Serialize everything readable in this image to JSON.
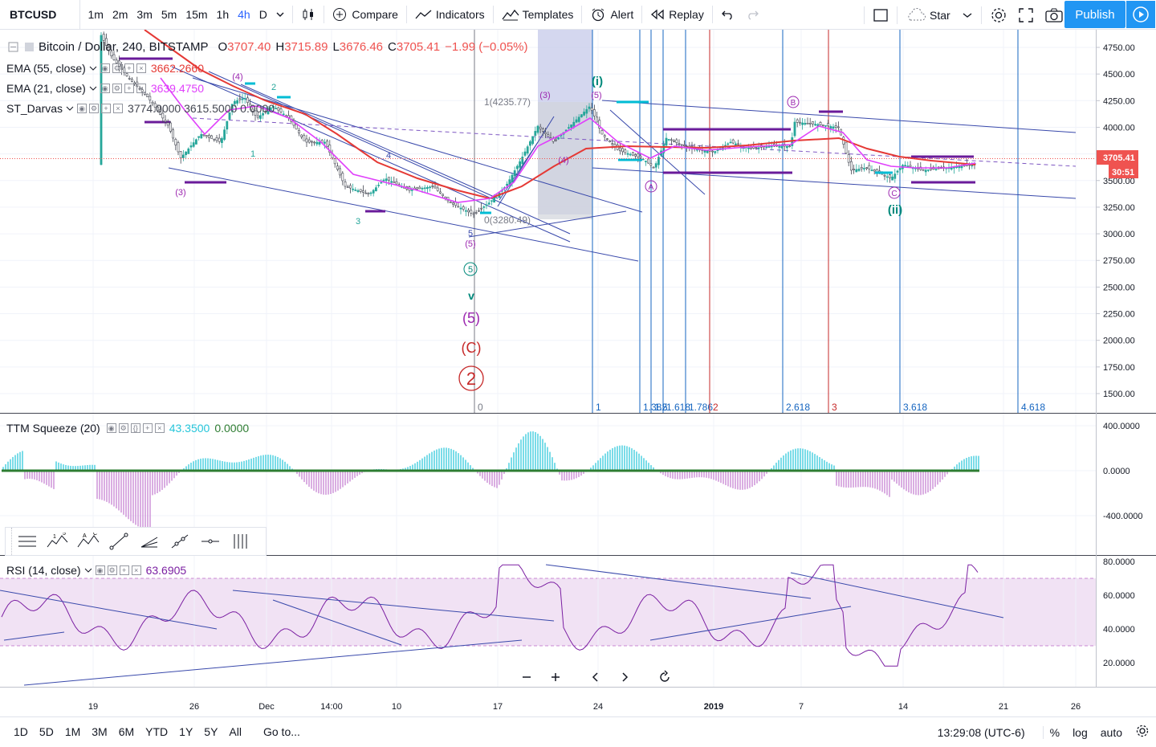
{
  "toolbar": {
    "symbol": "BTCUSD",
    "intervals": [
      "1m",
      "2m",
      "3m",
      "5m",
      "15m",
      "1h",
      "4h",
      "D"
    ],
    "active_interval": "4h",
    "compare": "Compare",
    "indicators": "Indicators",
    "templates": "Templates",
    "alert": "Alert",
    "replay": "Replay",
    "star": "Star",
    "publish": "Publish"
  },
  "legend": {
    "title": "Bitcoin / Dollar, 240, BITSTAMP",
    "o_label": "O",
    "o_val": "3707.40",
    "h_label": "H",
    "h_val": "3715.89",
    "l_label": "L",
    "l_val": "3676.46",
    "c_label": "C",
    "c_val": "3705.41",
    "change": "−1.99 (−0.05%)",
    "ema55": {
      "label": "EMA (55, close)",
      "value": "3662.2660",
      "color": "#e53935"
    },
    "ema21": {
      "label": "EMA (21, close)",
      "value": "3639.4750",
      "color": "#e040fb"
    },
    "darvas": {
      "label": "ST_Darvas",
      "values": "3774.0000  3615.5000  0.0000"
    },
    "ttm": {
      "label": "TTM Squeeze (20)",
      "value1": "43.3500",
      "value2": "0.0000"
    },
    "rsi": {
      "label": "RSI (14, close)",
      "value": "63.6905"
    }
  },
  "price_axis": [
    "4750.00",
    "4500.00",
    "4250.00",
    "4000.00",
    "3750.00",
    "3500.00",
    "3250.00",
    "3000.00",
    "2750.00",
    "2500.00",
    "2250.00",
    "2000.00",
    "1750.00",
    "1500.00"
  ],
  "price_tag": {
    "value": "3705.41",
    "timer": "30:51"
  },
  "ttm_axis": [
    "400.0000",
    "0.0000",
    "-400.0000"
  ],
  "rsi_axis": [
    "80.0000",
    "60.0000",
    "40.0000",
    "20.0000"
  ],
  "time_axis": [
    "19",
    "26",
    "Dec",
    "14:00",
    "10",
    "17",
    "24",
    "2019",
    "7",
    "14",
    "21",
    "26"
  ],
  "fib_labels": [
    "0",
    "1",
    "1.382",
    "1.5",
    "1.618",
    "1.786",
    "2",
    "2.618",
    "3",
    "3.618",
    "4.618"
  ],
  "annotations": {
    "wave_i": "(i)",
    "wave_ii": "(ii)",
    "wave_A": "A",
    "wave_B": "B",
    "wave_C": "C",
    "five_circle": "5",
    "v": "v",
    "five_paren": "(5)",
    "C_paren": "(C)",
    "two": "2",
    "fib_top": "1(4235.77)",
    "fib_bottom": "0(3280.49)",
    "w4_top": "(4)",
    "w3_low": "(3)",
    "w5_low": "(5)",
    "w5_top": "(5)",
    "w4_mid": "(4)",
    "w3_mid": "(3)",
    "n2": "2",
    "n1": "1",
    "n3": "3",
    "n4": "4",
    "n5": "5"
  },
  "bottom": {
    "ranges": [
      "1D",
      "5D",
      "1M",
      "3M",
      "6M",
      "YTD",
      "1Y",
      "5Y",
      "All"
    ],
    "goto": "Go to...",
    "time": "13:29:08 (UTC-6)",
    "pct": "%",
    "log": "log",
    "auto": "auto"
  }
}
